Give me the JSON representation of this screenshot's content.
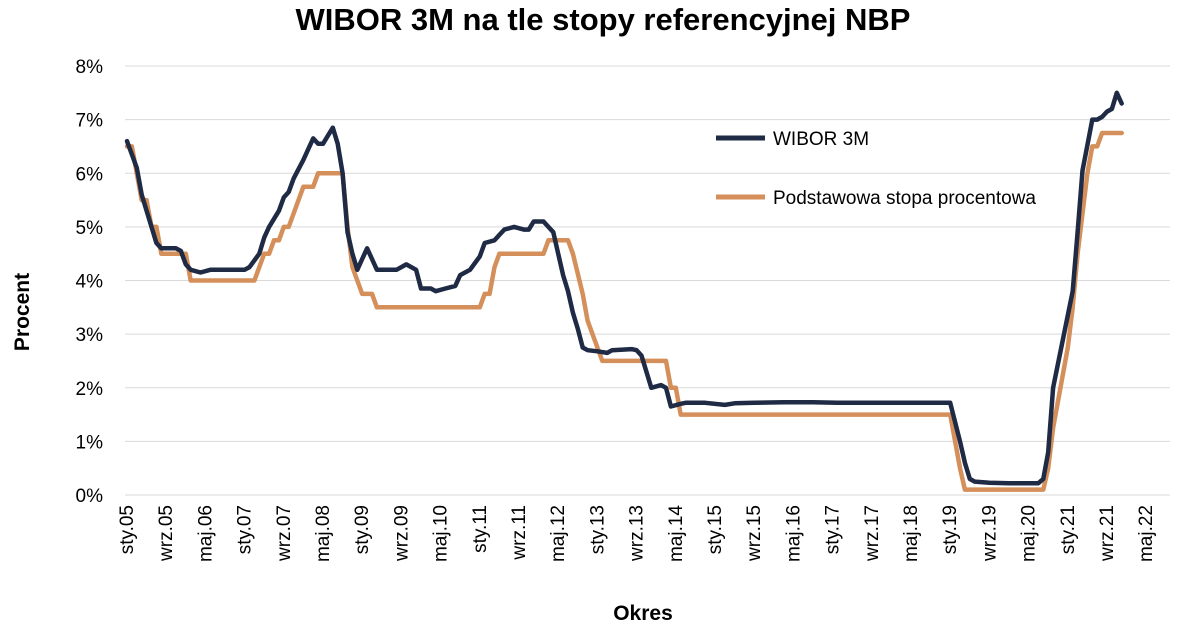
{
  "chart_data": {
    "type": "line",
    "title": "WIBOR 3M na tle stopy referencyjnej NBP",
    "xlabel": "Okres",
    "ylabel": "Procent",
    "ylim": [
      0,
      8
    ],
    "yticks": [
      "0%",
      "1%",
      "2%",
      "3%",
      "4%",
      "5%",
      "6%",
      "7%",
      "8%"
    ],
    "xticks": [
      "sty.05",
      "wrz.05",
      "maj.06",
      "sty.07",
      "wrz.07",
      "maj.08",
      "sty.09",
      "wrz.09",
      "maj.10",
      "sty.11",
      "wrz.11",
      "maj.12",
      "sty.13",
      "wrz.13",
      "maj.14",
      "sty.15",
      "wrz.15",
      "maj.16",
      "sty.17",
      "wrz.17",
      "maj.18",
      "sty.19",
      "wrz.19",
      "maj.20",
      "sty.21",
      "wrz.21",
      "maj.22"
    ],
    "x_unit": "months since sty.05 (month index)",
    "grid": true,
    "legend_position": "top-right",
    "series": [
      {
        "name": "WIBOR 3M",
        "color": "#1f2a44",
        "points": [
          [
            0,
            6.6
          ],
          [
            2,
            6.1
          ],
          [
            3,
            5.6
          ],
          [
            5,
            5.0
          ],
          [
            6,
            4.7
          ],
          [
            7,
            4.6
          ],
          [
            9,
            4.6
          ],
          [
            10,
            4.6
          ],
          [
            11,
            4.55
          ],
          [
            12,
            4.3
          ],
          [
            13,
            4.2
          ],
          [
            15,
            4.15
          ],
          [
            17,
            4.2
          ],
          [
            20,
            4.2
          ],
          [
            22,
            4.2
          ],
          [
            24,
            4.2
          ],
          [
            25,
            4.25
          ],
          [
            27,
            4.5
          ],
          [
            28,
            4.8
          ],
          [
            29,
            5.0
          ],
          [
            31,
            5.3
          ],
          [
            32,
            5.55
          ],
          [
            33,
            5.65
          ],
          [
            34,
            5.9
          ],
          [
            36,
            6.25
          ],
          [
            37,
            6.45
          ],
          [
            38,
            6.65
          ],
          [
            39,
            6.55
          ],
          [
            40,
            6.55
          ],
          [
            41,
            6.7
          ],
          [
            42,
            6.85
          ],
          [
            43,
            6.55
          ],
          [
            44,
            6.0
          ],
          [
            45,
            4.9
          ],
          [
            46,
            4.5
          ],
          [
            47,
            4.2
          ],
          [
            48,
            4.4
          ],
          [
            49,
            4.6
          ],
          [
            50,
            4.4
          ],
          [
            51,
            4.2
          ],
          [
            55,
            4.2
          ],
          [
            57,
            4.3
          ],
          [
            59,
            4.2
          ],
          [
            60,
            3.85
          ],
          [
            62,
            3.85
          ],
          [
            63,
            3.8
          ],
          [
            65,
            3.85
          ],
          [
            67,
            3.9
          ],
          [
            68,
            4.1
          ],
          [
            70,
            4.2
          ],
          [
            72,
            4.45
          ],
          [
            73,
            4.7
          ],
          [
            75,
            4.75
          ],
          [
            76,
            4.85
          ],
          [
            77,
            4.95
          ],
          [
            79,
            5.0
          ],
          [
            81,
            4.95
          ],
          [
            82,
            4.95
          ],
          [
            83,
            5.1
          ],
          [
            85,
            5.1
          ],
          [
            86,
            5.0
          ],
          [
            87,
            4.9
          ],
          [
            88,
            4.5
          ],
          [
            89,
            4.1
          ],
          [
            90,
            3.8
          ],
          [
            91,
            3.4
          ],
          [
            92,
            3.1
          ],
          [
            93,
            2.75
          ],
          [
            94,
            2.7
          ],
          [
            96,
            2.68
          ],
          [
            98,
            2.65
          ],
          [
            99,
            2.7
          ],
          [
            103,
            2.72
          ],
          [
            104,
            2.7
          ],
          [
            105,
            2.6
          ],
          [
            106,
            2.3
          ],
          [
            107,
            2.0
          ],
          [
            109,
            2.05
          ],
          [
            110,
            2.0
          ],
          [
            111,
            1.65
          ],
          [
            113,
            1.7
          ],
          [
            114,
            1.72
          ],
          [
            118,
            1.72
          ],
          [
            122,
            1.68
          ],
          [
            124,
            1.71
          ],
          [
            128,
            1.72
          ],
          [
            134,
            1.73
          ],
          [
            140,
            1.73
          ],
          [
            145,
            1.72
          ],
          [
            152,
            1.72
          ],
          [
            160,
            1.72
          ],
          [
            166,
            1.72
          ],
          [
            168,
            1.72
          ],
          [
            170,
            1.0
          ],
          [
            171,
            0.6
          ],
          [
            172,
            0.3
          ],
          [
            173,
            0.25
          ],
          [
            176,
            0.23
          ],
          [
            180,
            0.22
          ],
          [
            184,
            0.22
          ],
          [
            186,
            0.22
          ],
          [
            187,
            0.3
          ],
          [
            188,
            0.8
          ],
          [
            189,
            2.0
          ],
          [
            191,
            2.9
          ],
          [
            193,
            3.8
          ],
          [
            194,
            4.9
          ],
          [
            195,
            6.05
          ],
          [
            197,
            7.0
          ],
          [
            198,
            7.0
          ],
          [
            199,
            7.05
          ],
          [
            200,
            7.15
          ],
          [
            201,
            7.2
          ],
          [
            202,
            7.5
          ],
          [
            203,
            7.3
          ]
        ]
      },
      {
        "name": "Podstawowa stopa procentowa",
        "color": "#d48f5a",
        "points": [
          [
            0,
            6.5
          ],
          [
            1,
            6.5
          ],
          [
            2,
            6.0
          ],
          [
            3,
            5.5
          ],
          [
            4,
            5.5
          ],
          [
            5,
            5.0
          ],
          [
            6,
            5.0
          ],
          [
            7,
            4.5
          ],
          [
            12,
            4.5
          ],
          [
            13,
            4.0
          ],
          [
            26,
            4.0
          ],
          [
            27,
            4.25
          ],
          [
            28,
            4.5
          ],
          [
            29,
            4.5
          ],
          [
            30,
            4.75
          ],
          [
            31,
            4.75
          ],
          [
            32,
            5.0
          ],
          [
            33,
            5.0
          ],
          [
            34,
            5.25
          ],
          [
            35,
            5.5
          ],
          [
            36,
            5.75
          ],
          [
            38,
            5.75
          ],
          [
            39,
            6.0
          ],
          [
            44,
            6.0
          ],
          [
            45,
            5.0
          ],
          [
            46,
            4.25
          ],
          [
            47,
            4.0
          ],
          [
            48,
            3.75
          ],
          [
            50,
            3.75
          ],
          [
            51,
            3.5
          ],
          [
            72,
            3.5
          ],
          [
            73,
            3.75
          ],
          [
            74,
            3.75
          ],
          [
            75,
            4.25
          ],
          [
            76,
            4.5
          ],
          [
            85,
            4.5
          ],
          [
            86,
            4.75
          ],
          [
            90,
            4.75
          ],
          [
            91,
            4.5
          ],
          [
            93,
            3.75
          ],
          [
            94,
            3.25
          ],
          [
            95,
            3.0
          ],
          [
            96,
            2.75
          ],
          [
            97,
            2.5
          ],
          [
            110,
            2.5
          ],
          [
            111,
            2.0
          ],
          [
            112,
            2.0
          ],
          [
            113,
            1.5
          ],
          [
            168,
            1.5
          ],
          [
            169,
            1.0
          ],
          [
            170,
            0.5
          ],
          [
            171,
            0.1
          ],
          [
            187,
            0.1
          ],
          [
            188,
            0.5
          ],
          [
            189,
            1.25
          ],
          [
            190,
            1.75
          ],
          [
            191,
            2.25
          ],
          [
            192,
            2.75
          ],
          [
            193,
            3.5
          ],
          [
            194,
            4.5
          ],
          [
            195,
            5.25
          ],
          [
            196,
            6.0
          ],
          [
            197,
            6.5
          ],
          [
            198,
            6.5
          ],
          [
            199,
            6.75
          ],
          [
            202,
            6.75
          ],
          [
            203,
            6.75
          ]
        ]
      }
    ]
  }
}
